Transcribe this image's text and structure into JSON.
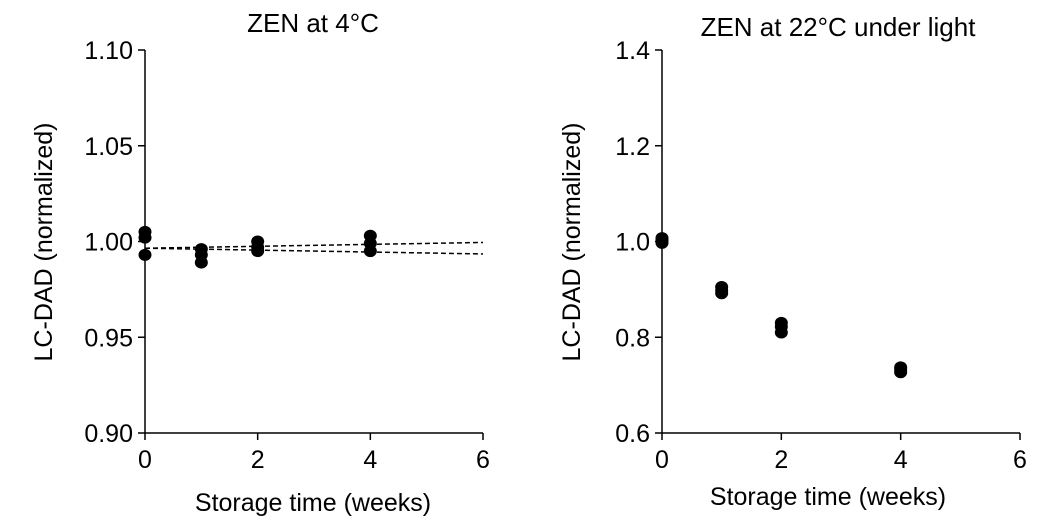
{
  "chart_data": [
    {
      "type": "scatter",
      "title": "ZEN at 4°C",
      "xlabel": "Storage time (weeks)",
      "ylabel": "LC-DAD  (normalized)",
      "xlim": [
        0,
        6
      ],
      "ylim": [
        0.9,
        1.1
      ],
      "xticks": [
        "0",
        "2",
        "4",
        "6"
      ],
      "yticks": [
        "0.90",
        "0.95",
        "1.00",
        "1.05",
        "1.10"
      ],
      "grid": false,
      "legend": "none",
      "marker_color": "#000000",
      "series": [
        {
          "x": [
            0,
            0,
            0,
            1,
            1,
            1,
            2,
            2,
            2,
            4,
            4,
            4
          ],
          "y": [
            1.005,
            1.002,
            0.993,
            0.996,
            0.993,
            0.989,
            1.0,
            0.997,
            0.995,
            1.003,
            0.999,
            0.995
          ]
        }
      ],
      "trendlines": [
        {
          "x": [
            0,
            6
          ],
          "y": [
            0.9965,
            0.9995
          ],
          "style": "dashed"
        },
        {
          "x": [
            0,
            6
          ],
          "y": [
            0.9965,
            0.9935
          ],
          "style": "dashed"
        }
      ]
    },
    {
      "type": "scatter",
      "title": "ZEN at 22°C under light",
      "xlabel": "Storage time (weeks)",
      "ylabel": "LC-DAD (normalized)",
      "xlim": [
        0,
        6
      ],
      "ylim": [
        0.6,
        1.4
      ],
      "xticks": [
        "0",
        "2",
        "4",
        "6"
      ],
      "yticks": [
        "0.6",
        "0.8",
        "1.0",
        "1.2",
        "1.4"
      ],
      "grid": false,
      "legend": "none",
      "marker_color": "#000000",
      "series": [
        {
          "x": [
            0,
            0,
            0,
            1,
            1,
            1,
            2,
            2,
            2,
            4,
            4,
            4
          ],
          "y": [
            1.007,
            1.002,
            0.997,
            0.905,
            0.898,
            0.892,
            0.83,
            0.822,
            0.81,
            0.737,
            0.732,
            0.727
          ]
        }
      ]
    }
  ]
}
